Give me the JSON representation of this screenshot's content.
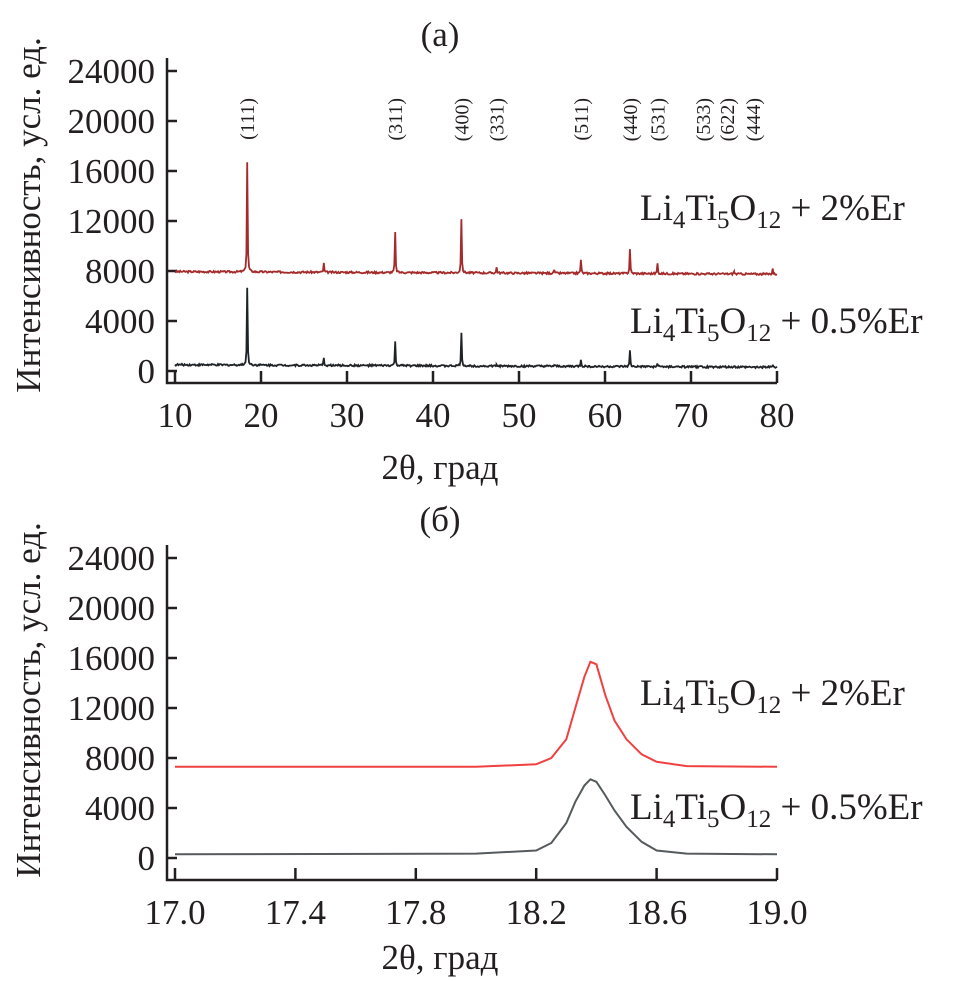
{
  "chart_data": [
    {
      "type": "line",
      "panel_label": "(a)",
      "xlabel": "2θ, град",
      "ylabel": "Интенсивность, усл. ед.",
      "xlim": [
        10,
        80
      ],
      "ylim": [
        0,
        24000
      ],
      "xticks": [
        "10",
        "20",
        "30",
        "40",
        "50",
        "60",
        "70",
        "80"
      ],
      "yticks": [
        "0",
        "4000",
        "8000",
        "12000",
        "16000",
        "20000",
        "24000"
      ],
      "annotations": [
        {
          "text": "(111)",
          "x": 18.4
        },
        {
          "text": "(311)",
          "x": 35.6
        },
        {
          "text": "(400)",
          "x": 43.3
        },
        {
          "text": "(331)",
          "x": 47.4
        },
        {
          "text": "(511)",
          "x": 57.2
        },
        {
          "text": "(440)",
          "x": 62.9
        },
        {
          "text": "(531)",
          "x": 66.1
        },
        {
          "text": "(533)",
          "x": 71.4
        },
        {
          "text": "(622)",
          "x": 74.2
        },
        {
          "text": "(444)",
          "x": 77.2
        }
      ],
      "series": [
        {
          "name": [
            {
              "t": "Li"
            },
            {
              "t": "4",
              "sub": true
            },
            {
              "t": "Ti"
            },
            {
              "t": "5",
              "sub": true
            },
            {
              "t": "O"
            },
            {
              "t": "12",
              "sub": true
            },
            {
              "t": " + 2%Er"
            }
          ],
          "color": "#a52a2a",
          "baseline": [
            [
              10,
              7950
            ],
            [
              80,
              7750
            ]
          ],
          "peaks": [
            [
              18.4,
              16700
            ],
            [
              27.3,
              8600
            ],
            [
              35.6,
              11100
            ],
            [
              43.3,
              12150
            ],
            [
              47.4,
              8300
            ],
            [
              54.1,
              8100
            ],
            [
              57.2,
              8900
            ],
            [
              62.9,
              9750
            ],
            [
              66.1,
              8600
            ],
            [
              75.0,
              7950
            ],
            [
              79.5,
              8200
            ]
          ]
        },
        {
          "name": [
            {
              "t": "Li"
            },
            {
              "t": "4",
              "sub": true
            },
            {
              "t": "Ti"
            },
            {
              "t": "5",
              "sub": true
            },
            {
              "t": "O"
            },
            {
              "t": "12",
              "sub": true
            },
            {
              "t": " + 0.5%Er"
            }
          ],
          "color": "#1f2326",
          "baseline": [
            [
              10,
              500
            ],
            [
              80,
              300
            ]
          ],
          "peaks": [
            [
              18.4,
              6650
            ],
            [
              27.3,
              1000
            ],
            [
              35.6,
              2300
            ],
            [
              43.3,
              3000
            ],
            [
              47.4,
              500
            ],
            [
              54.1,
              450
            ],
            [
              57.2,
              900
            ],
            [
              62.9,
              1600
            ],
            [
              66.1,
              600
            ],
            [
              75.0,
              350
            ],
            [
              79.5,
              500
            ]
          ]
        }
      ]
    },
    {
      "type": "line",
      "panel_label": "(б)",
      "xlabel": "2θ, град",
      "ylabel": "Интенсивность, усл. ед.",
      "xlim": [
        17.0,
        19.0
      ],
      "ylim": [
        0,
        24000
      ],
      "xticks": [
        "17.0",
        "17.4",
        "17.8",
        "18.2",
        "18.6",
        "19.0"
      ],
      "yticks": [
        "0",
        "4000",
        "8000",
        "12000",
        "16000",
        "20000",
        "24000"
      ],
      "x": [
        17.0,
        18.0,
        18.2,
        18.25,
        18.3,
        18.33,
        18.36,
        18.38,
        18.4,
        18.43,
        18.46,
        18.5,
        18.55,
        18.6,
        18.7,
        19.0
      ],
      "series": [
        {
          "name": [
            {
              "t": "Li"
            },
            {
              "t": "4",
              "sub": true
            },
            {
              "t": "Ti"
            },
            {
              "t": "5",
              "sub": true
            },
            {
              "t": "O"
            },
            {
              "t": "12",
              "sub": true
            },
            {
              "t": " + 2%Er"
            }
          ],
          "color": "#f04040",
          "values": [
            7300,
            7300,
            7500,
            8000,
            9500,
            12000,
            14500,
            15700,
            15500,
            13000,
            11000,
            9500,
            8300,
            7700,
            7350,
            7300
          ]
        },
        {
          "name": [
            {
              "t": "Li"
            },
            {
              "t": "4",
              "sub": true
            },
            {
              "t": "Ti"
            },
            {
              "t": "5",
              "sub": true
            },
            {
              "t": "O"
            },
            {
              "t": "12",
              "sub": true
            },
            {
              "t": " + 0.5%Er"
            }
          ],
          "color": "#555a5c",
          "values": [
            300,
            350,
            600,
            1200,
            2800,
            4500,
            5800,
            6300,
            6100,
            5000,
            3800,
            2500,
            1300,
            600,
            350,
            300
          ]
        }
      ]
    }
  ]
}
